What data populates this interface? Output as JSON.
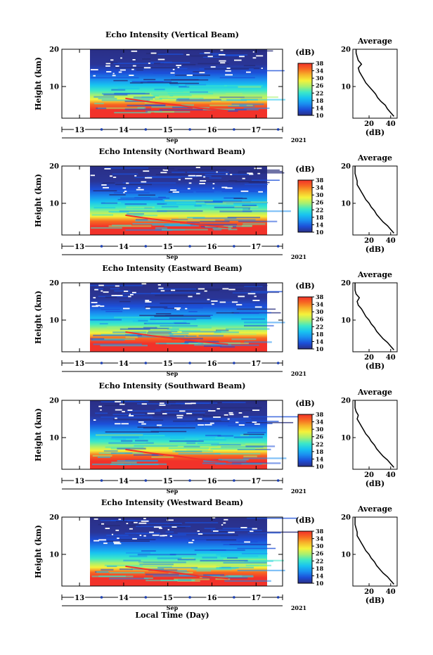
{
  "footer": {
    "xlabel": "Local Time (Day)"
  },
  "chart_data": {
    "type": "heatmap",
    "month_label": "Sep",
    "year_label": "2021",
    "ylabel": "Height (km)",
    "x_ticks": [
      "13",
      "14",
      "15",
      "16",
      "17"
    ],
    "y_ticks": [
      "10",
      "20"
    ],
    "ylim": [
      1.5,
      20
    ],
    "xlim": [
      12.6,
      17.6
    ],
    "data_start_day": 13.15,
    "data_end_day": 17.2,
    "colorbar": {
      "unit": "(dB)",
      "ticks": [
        "38",
        "34",
        "30",
        "26",
        "22",
        "18",
        "14",
        "10"
      ],
      "range": [
        10,
        38
      ],
      "colors": [
        "#2a2f86",
        "#1c4fd8",
        "#1a8ef0",
        "#18c3f0",
        "#3ce8c8",
        "#a8f070",
        "#f5f23a",
        "#f7b52a",
        "#f76a22",
        "#f2322a"
      ]
    },
    "profile": {
      "title": "Average",
      "xlabel": "(dB)",
      "heights": [
        2,
        3,
        4,
        5,
        6,
        7,
        8,
        9,
        10,
        11,
        12,
        13,
        14,
        15,
        16,
        17,
        18,
        19,
        20
      ]
    },
    "panels": [
      {
        "title": "Echo Intensity (Vertical Beam)",
        "profile_ticks": [
          "20",
          "40"
        ],
        "profile_xlim": [
          5,
          46
        ],
        "profile_values": [
          43,
          40,
          37,
          35,
          31,
          28,
          26,
          23,
          20,
          17,
          15,
          13,
          11,
          10,
          13,
          10,
          9,
          8,
          8
        ]
      },
      {
        "title": "Echo Intensity (Northward Beam)",
        "profile_ticks": [
          "20",
          "40"
        ],
        "profile_xlim": [
          5,
          46
        ],
        "profile_values": [
          43,
          40,
          37,
          33,
          30,
          27,
          25,
          22,
          20,
          17,
          15,
          13,
          11,
          9,
          9,
          8,
          7,
          7,
          7
        ]
      },
      {
        "title": "Echo Intensity (Eastward Beam)",
        "profile_ticks": [
          "20",
          "40"
        ],
        "profile_xlim": [
          5,
          46
        ],
        "profile_values": [
          43,
          40,
          37,
          33,
          30,
          27,
          25,
          22,
          20,
          17,
          15,
          13,
          10,
          9,
          11,
          8,
          7,
          7,
          7
        ]
      },
      {
        "title": "Echo Intensity (Southward Beam)",
        "profile_ticks": [
          "20",
          "40"
        ],
        "profile_xlim": [
          5,
          46
        ],
        "profile_values": [
          43,
          40,
          37,
          33,
          30,
          27,
          25,
          22,
          20,
          17,
          15,
          13,
          11,
          9,
          10,
          8,
          7,
          7,
          7
        ]
      },
      {
        "title": "Echo Intensity (Westward Beam)",
        "profile_ticks": [
          "20",
          "40"
        ],
        "profile_xlim": [
          5,
          46
        ],
        "profile_values": [
          43,
          40,
          37,
          33,
          30,
          27,
          25,
          22,
          20,
          17,
          15,
          13,
          11,
          9,
          9,
          8,
          7,
          7,
          7
        ]
      }
    ]
  }
}
